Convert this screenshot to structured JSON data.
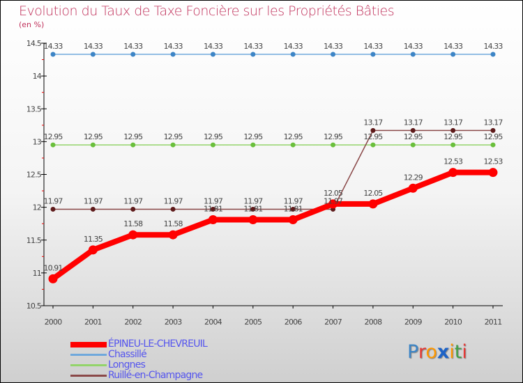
{
  "chart_data": {
    "type": "line",
    "title": "Evolution du Taux de Taxe Foncière sur les Propriétés Bâties",
    "ylabel": "(en %)",
    "xlabel": "",
    "x": [
      "2000",
      "2001",
      "2002",
      "2003",
      "2004",
      "2005",
      "2006",
      "2007",
      "2008",
      "2009",
      "2010",
      "2011"
    ],
    "ylim": [
      10.5,
      14.5
    ],
    "yticks": [
      "10.5",
      "11",
      "11.5",
      "12",
      "12.5",
      "13",
      "13.5",
      "14",
      "14.5"
    ],
    "legend_position": "bottom-left",
    "series": [
      {
        "name": "ÉPINEU-LE-CHEVREUIL",
        "color": "#ff0000",
        "marker": "#ff0000",
        "width": 8,
        "values": [
          10.91,
          11.35,
          11.58,
          11.58,
          11.81,
          11.81,
          11.81,
          12.05,
          12.05,
          12.29,
          12.53,
          12.53
        ]
      },
      {
        "name": "Chassillé",
        "color": "#6fa8dc",
        "marker": "#3d85c6",
        "width": 1.5,
        "values": [
          14.33,
          14.33,
          14.33,
          14.33,
          14.33,
          14.33,
          14.33,
          14.33,
          14.33,
          14.33,
          14.33,
          14.33
        ]
      },
      {
        "name": "Longnes",
        "color": "#93d46a",
        "marker": "#6abf3c",
        "width": 1.5,
        "values": [
          12.95,
          12.95,
          12.95,
          12.95,
          12.95,
          12.95,
          12.95,
          12.95,
          12.95,
          12.95,
          12.95,
          12.95
        ]
      },
      {
        "name": "Ruillé-en-Champagne",
        "color": "#8a4848",
        "marker": "#5e1a1a",
        "width": 1.5,
        "values": [
          11.97,
          11.97,
          11.97,
          11.97,
          11.97,
          11.97,
          11.97,
          11.97,
          13.17,
          13.17,
          13.17,
          13.17
        ]
      }
    ]
  },
  "logo": {
    "text": "Proxiti",
    "letters": [
      "P",
      "r",
      "o",
      "x",
      "i",
      "t",
      "i"
    ],
    "colors": [
      "#3d85c6",
      "#e53935",
      "#ff9800",
      "#1e63c6",
      "#ff9800",
      "#43a047",
      "#e53935"
    ]
  }
}
